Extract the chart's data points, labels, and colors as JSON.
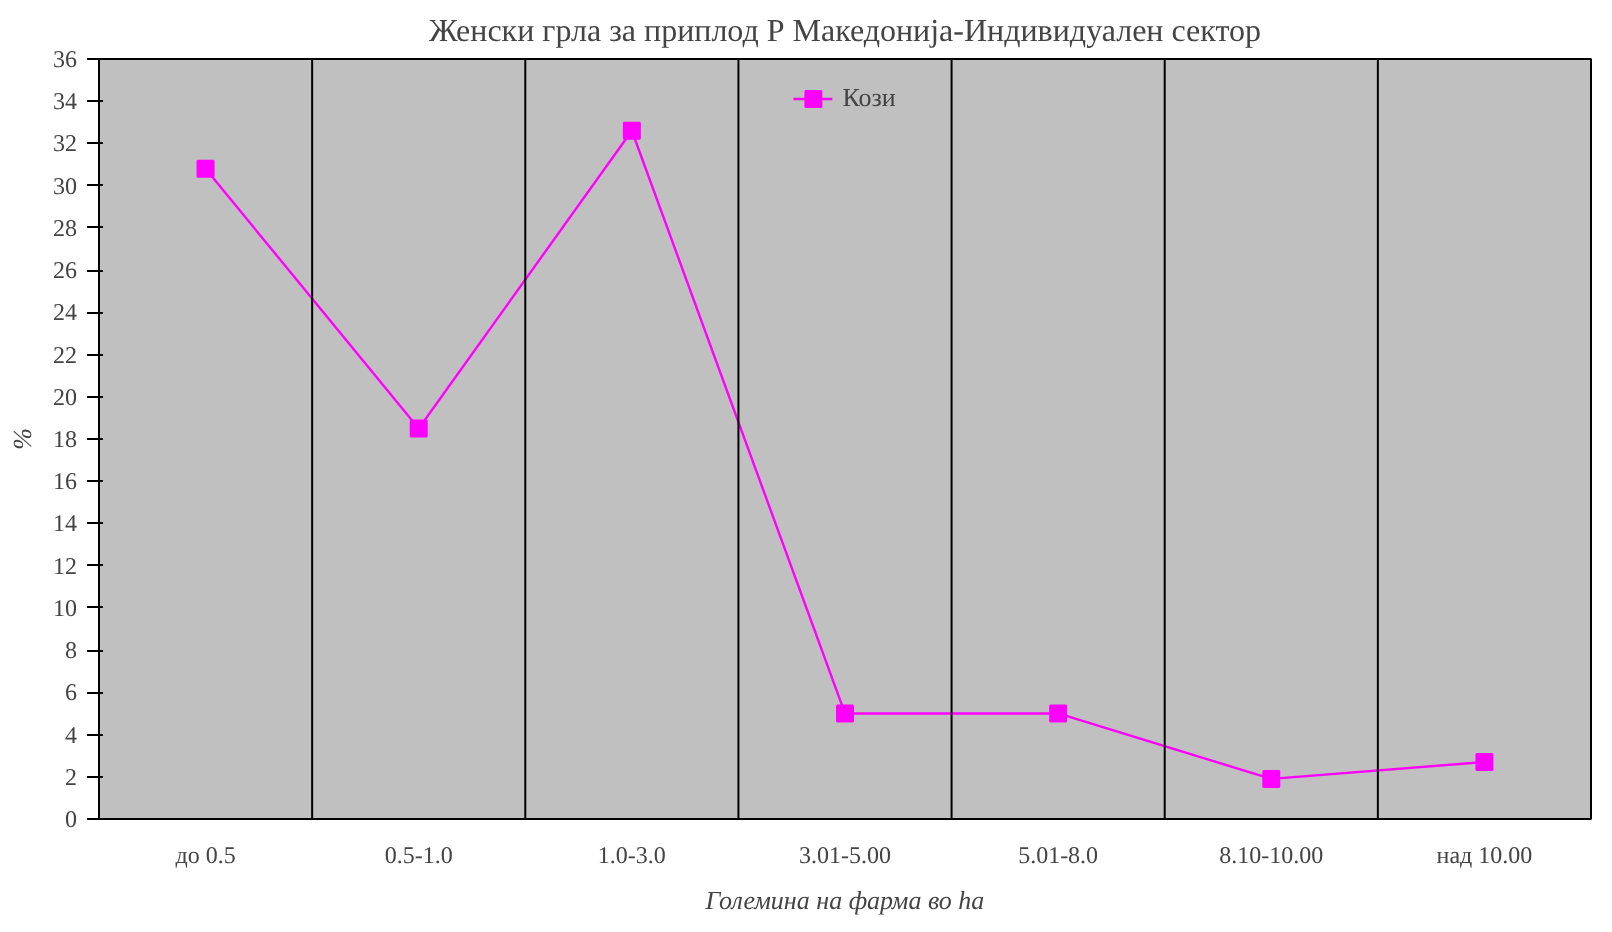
{
  "chart_data": {
    "type": "line",
    "title": "Женски грла за приплод Р Македонија-Индивидуален сектор",
    "xlabel": "Големина на фарма во ha",
    "ylabel": "%",
    "categories": [
      "до 0.5",
      "0.5-1.0",
      "1.0-3.0",
      "3.01-5.00",
      "5.01-8.0",
      "8.10-10.00",
      "над 10.00"
    ],
    "series": [
      {
        "name": "Кози",
        "color": "#ff00ff",
        "values": [
          30.8,
          18.5,
          32.6,
          5.0,
          5.0,
          1.9,
          2.7
        ]
      }
    ],
    "ylim": [
      0,
      36
    ],
    "yticks": [
      0,
      2,
      4,
      6,
      8,
      10,
      12,
      14,
      16,
      18,
      20,
      22,
      24,
      26,
      28,
      30,
      32,
      34,
      36
    ],
    "grid": "x",
    "legend": "top",
    "marker": "square",
    "line_style": "solid"
  }
}
